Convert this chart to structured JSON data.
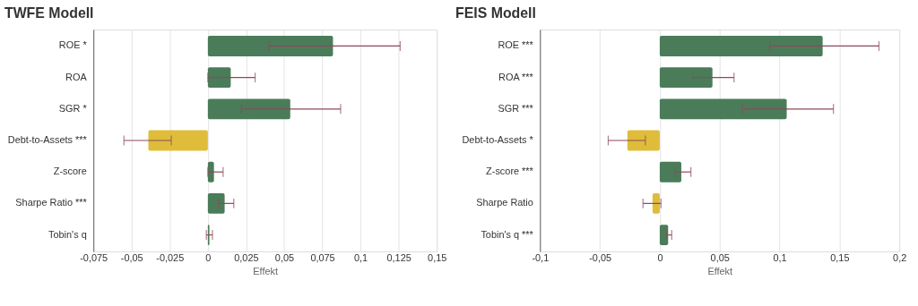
{
  "chart_data": [
    {
      "type": "bar",
      "orientation": "horizontal",
      "title": "TWFE Modell",
      "xlabel": "Effekt",
      "categories": [
        "ROE *",
        "ROA",
        "SGR *",
        "Debt-to-Assets ***",
        "Z-score",
        "Sharpe Ratio ***",
        "Tobin's q"
      ],
      "values": [
        0.082,
        0.015,
        0.054,
        -0.039,
        0.004,
        0.011,
        0.001
      ],
      "colors": [
        "#4a7c59",
        "#4a7c59",
        "#4a7c59",
        "#dfbd3a",
        "#4a7c59",
        "#4a7c59",
        "#4a7c59"
      ],
      "errors": [
        [
          0.04,
          0.126
        ],
        [
          0.0,
          0.031
        ],
        [
          0.022,
          0.087
        ],
        [
          -0.055,
          -0.024
        ],
        [
          0.0,
          0.01
        ],
        [
          0.007,
          0.017
        ],
        [
          -0.001,
          0.003
        ]
      ],
      "xlim": [
        -0.075,
        0.15
      ],
      "xticks": [
        {
          "value": -0.075,
          "label": "-0,075"
        },
        {
          "value": -0.05,
          "label": "-0,05"
        },
        {
          "value": -0.025,
          "label": "-0,025"
        },
        0,
        {
          "value": 0.025,
          "label": "0,025"
        },
        {
          "value": 0.05,
          "label": "0,05"
        },
        {
          "value": 0.075,
          "label": "0,075"
        },
        {
          "value": 0.1,
          "label": "0,1"
        },
        {
          "value": 0.125,
          "label": "0,125"
        },
        {
          "value": 0.15,
          "label": "0,15"
        }
      ],
      "grid": "x"
    },
    {
      "type": "bar",
      "orientation": "horizontal",
      "title": "FEIS Modell",
      "xlabel": "Effekt",
      "categories": [
        "ROE ***",
        "ROA ***",
        "SGR ***",
        "Debt-to-Assets *",
        "Z-score ***",
        "Sharpe Ratio",
        "Tobin's q ***"
      ],
      "values": [
        0.136,
        0.044,
        0.106,
        -0.027,
        0.018,
        -0.006,
        0.007
      ],
      "colors": [
        "#4a7c59",
        "#4a7c59",
        "#4a7c59",
        "#dfbd3a",
        "#4a7c59",
        "#dfbd3a",
        "#4a7c59"
      ],
      "errors": [
        [
          0.092,
          0.183
        ],
        [
          0.028,
          0.062
        ],
        [
          0.069,
          0.145
        ],
        [
          -0.043,
          -0.012
        ],
        [
          0.013,
          0.026
        ],
        [
          -0.014,
          0.001
        ],
        [
          0.006,
          0.01
        ]
      ],
      "xlim": [
        -0.1,
        0.2
      ],
      "xticks": [
        {
          "value": -0.1,
          "label": "-0,1"
        },
        {
          "value": -0.05,
          "label": "-0,05"
        },
        0,
        {
          "value": 0.05,
          "label": "0,05"
        },
        {
          "value": 0.1,
          "label": "0,1"
        },
        {
          "value": 0.15,
          "label": "0,15"
        },
        {
          "value": 0.2,
          "label": "0,2"
        }
      ],
      "grid": "x"
    }
  ]
}
